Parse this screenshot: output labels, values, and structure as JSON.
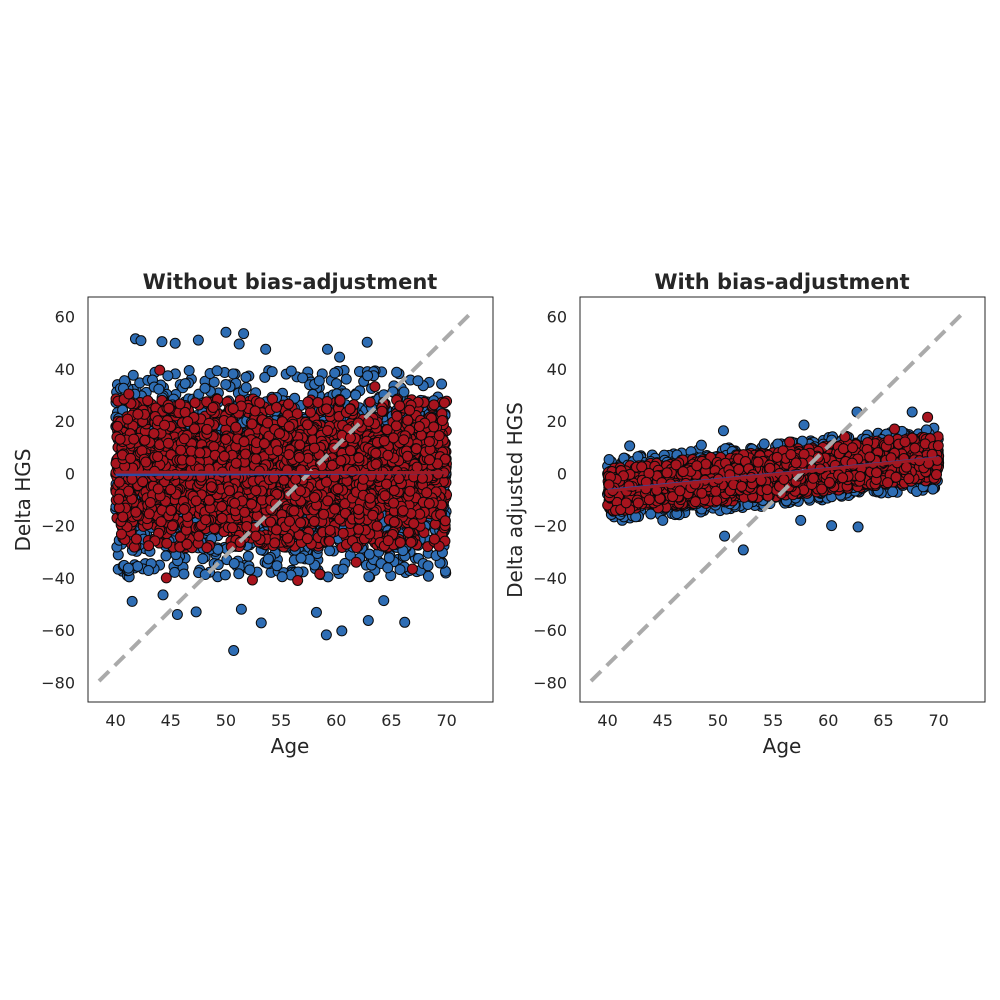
{
  "colors": {
    "blue_fill": "#2e6db4",
    "red_fill": "#a8141e",
    "marker_edge": "#0a0a0a",
    "identity_line": "#aaaaaa",
    "blue_fit": "#2e4aa0",
    "red_fit": "#9e1a24",
    "frame": "#262626"
  },
  "chart_data": [
    {
      "type": "scatter",
      "title": "Without bias-adjustment",
      "xlabel": "Age",
      "ylabel": "Delta HGS",
      "xlim": [
        37.5,
        74.2
      ],
      "ylim": [
        -87.5,
        67.5
      ],
      "xticks": [
        40,
        45,
        50,
        55,
        60,
        65,
        70
      ],
      "yticks": [
        -80,
        -60,
        -40,
        -20,
        0,
        20,
        40,
        60
      ],
      "grid": false,
      "legend": "none",
      "identity_line": {
        "x": [
          38.5,
          72
        ],
        "y": [
          -79.5,
          60.5
        ],
        "style": "dashed"
      },
      "series": [
        {
          "color": "blue",
          "x_range": [
            40,
            70
          ],
          "y_mean": 0,
          "y_sd": 18,
          "fit": {
            "x": [
              40,
              70
            ],
            "y": [
              -0.5,
              0.3
            ]
          },
          "outliers": [
            [
              41.8,
              51.5
            ],
            [
              42.3,
              50.8
            ],
            [
              44.2,
              50.4
            ],
            [
              45.4,
              49.8
            ],
            [
              47.5,
              51
            ],
            [
              50,
              54
            ],
            [
              51.6,
              53.5
            ],
            [
              51.2,
              49.5
            ],
            [
              53.6,
              47.5
            ],
            [
              59.2,
              47.5
            ],
            [
              60.3,
              44.5
            ],
            [
              62.8,
              50.2
            ],
            [
              44.3,
              -46.5
            ],
            [
              45.6,
              -54
            ],
            [
              47.3,
              -53
            ],
            [
              50.7,
              -67.8
            ],
            [
              51.4,
              -52
            ],
            [
              53.2,
              -57.2
            ],
            [
              58.2,
              -53.2
            ],
            [
              59.1,
              -61.8
            ],
            [
              60.5,
              -60.3
            ],
            [
              62.9,
              -56.3
            ],
            [
              66.2,
              -57
            ],
            [
              41.5,
              -49
            ],
            [
              64.3,
              -48.7
            ]
          ]
        },
        {
          "color": "red",
          "x_range": [
            40,
            70
          ],
          "y_mean": 0,
          "y_sd": 13,
          "fit": {
            "x": [
              40,
              70
            ],
            "y": [
              0.5,
              0.3
            ]
          },
          "outliers": [
            [
              44,
              39.5
            ],
            [
              41.2,
              30.4
            ],
            [
              63.5,
              33.2
            ],
            [
              69.8,
              27
            ],
            [
              44.6,
              -40
            ],
            [
              56.5,
              -41
            ],
            [
              58.5,
              -38.5
            ],
            [
              66.9,
              -36.6
            ],
            [
              52.4,
              -40.8
            ],
            [
              61.8,
              -34
            ]
          ]
        }
      ]
    },
    {
      "type": "scatter",
      "title": "With bias-adjustment",
      "xlabel": "Age",
      "ylabel": "Delta adjusted HGS",
      "xlim": [
        37.5,
        74.2
      ],
      "ylim": [
        -87.5,
        67.5
      ],
      "xticks": [
        40,
        45,
        50,
        55,
        60,
        65,
        70
      ],
      "yticks": [
        -80,
        -60,
        -40,
        -20,
        0,
        20,
        40,
        60
      ],
      "grid": false,
      "legend": "none",
      "identity_line": {
        "x": [
          38.5,
          72
        ],
        "y": [
          -79.5,
          60.5
        ],
        "style": "dashed"
      },
      "series": [
        {
          "color": "blue",
          "x_range": [
            40,
            70
          ],
          "y_mean_start": -6.5,
          "y_mean_end": 6,
          "y_sd": 5.5,
          "fit": {
            "x": [
              40,
              70
            ],
            "y": [
              -6.5,
              6
            ]
          },
          "outliers": [
            [
              42,
              10.5
            ],
            [
              48.5,
              10.8
            ],
            [
              50.5,
              16.3
            ],
            [
              57.8,
              18.5
            ],
            [
              62.6,
              23.5
            ],
            [
              67.6,
              23.5
            ],
            [
              50.6,
              -24
            ],
            [
              52.3,
              -29.3
            ],
            [
              60.3,
              -20
            ],
            [
              62.7,
              -20.5
            ],
            [
              57.5,
              -18
            ],
            [
              45,
              -18
            ]
          ]
        },
        {
          "color": "red",
          "x_range": [
            40,
            70
          ],
          "y_mean_start": -6.5,
          "y_mean_end": 6,
          "y_sd": 4,
          "fit": {
            "x": [
              40,
              70
            ],
            "y": [
              -6.8,
              5.8
            ]
          },
          "outliers": [
            [
              69,
              21.5
            ],
            [
              66,
              17
            ],
            [
              56.5,
              12
            ],
            [
              61.5,
              14
            ]
          ]
        }
      ]
    }
  ]
}
